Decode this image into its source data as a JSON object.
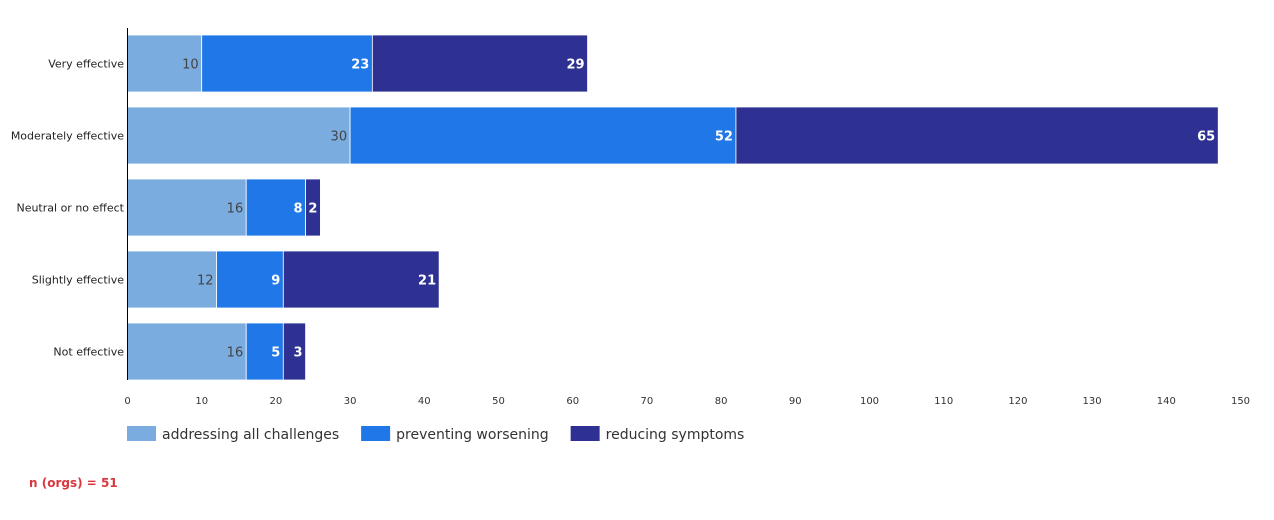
{
  "chart_data": {
    "type": "bar",
    "orientation": "horizontal",
    "stacked": true,
    "categories": [
      "Very effective",
      "Moderately effective",
      "Neutral or no effect",
      "Slightly effective",
      "Not effective"
    ],
    "series": [
      {
        "name": "addressing all challenges",
        "color": "#7aacdf",
        "label_color": "#444444",
        "values": [
          10,
          30,
          16,
          12,
          16
        ]
      },
      {
        "name": "preventing worsening",
        "color": "#1f77e8",
        "label_color": "#ffffff",
        "values": [
          23,
          52,
          8,
          9,
          5
        ]
      },
      {
        "name": "reducing symptoms",
        "color": "#2e3192",
        "label_color": "#ffffff",
        "values": [
          29,
          65,
          2,
          21,
          3
        ]
      }
    ],
    "xlim": [
      0,
      150
    ],
    "xticks": [
      0,
      10,
      20,
      30,
      40,
      50,
      60,
      70,
      80,
      90,
      100,
      110,
      120,
      130,
      140,
      150
    ],
    "title": "",
    "xlabel": "",
    "ylabel": "",
    "legend_position": "bottom-left"
  },
  "footnote": "n (orgs) = 51"
}
